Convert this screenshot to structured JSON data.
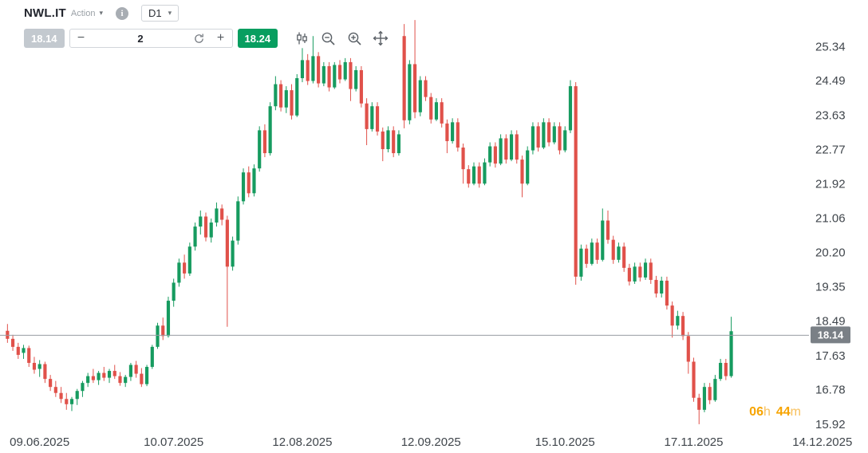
{
  "header": {
    "symbol": "NWL.IT",
    "instrument_type": "Action",
    "timeframe": "D1"
  },
  "trade": {
    "bid": "18.14",
    "quantity": "2",
    "ask": "18.24",
    "decrease_label": "−",
    "increase_label": "+"
  },
  "icons": {
    "caret_down": "▾",
    "info": "i",
    "toolbar_icons": [
      "candlestick-icon",
      "zoom-out-icon",
      "zoom-in-icon",
      "pan-icon"
    ]
  },
  "countdown": {
    "hours": "06",
    "hours_unit": "h",
    "minutes": "44",
    "minutes_unit": "m"
  },
  "chart_data": {
    "type": "candlestick",
    "symbol": "NWL.IT",
    "interval": "D1",
    "start_date": "09.06.2025",
    "last_price": 18.14,
    "last_price_label": "18.14",
    "price_min": 15.68,
    "price_max": 26.42,
    "total_slots": 150,
    "grid": false,
    "y_ticks": [
      "25.34",
      "24.49",
      "23.63",
      "22.77",
      "21.92",
      "21.06",
      "20.20",
      "19.35",
      "18.49",
      "17.63",
      "16.78",
      "15.92"
    ],
    "x_ticks": [
      {
        "label": "09.06.2025",
        "slot": 6
      },
      {
        "label": "10.07.2025",
        "slot": 31
      },
      {
        "label": "12.08.2025",
        "slot": 55
      },
      {
        "label": "12.09.2025",
        "slot": 79
      },
      {
        "label": "15.10.2025",
        "slot": 104
      },
      {
        "label": "17.11.2025",
        "slot": 128
      },
      {
        "label": "14.12.2025",
        "slot": 152
      }
    ],
    "colors": {
      "up": "#169b5f",
      "down": "#e0514a",
      "price_line": "#979da3",
      "price_badge_bg": "#7a8086",
      "axis_text": "#40464c"
    },
    "candles": [
      [
        18.25,
        18.42,
        17.95,
        18.05
      ],
      [
        18.05,
        18.15,
        17.75,
        17.85
      ],
      [
        17.85,
        17.95,
        17.55,
        17.65
      ],
      [
        17.7,
        17.9,
        17.55,
        17.82
      ],
      [
        17.82,
        17.88,
        17.35,
        17.45
      ],
      [
        17.45,
        17.6,
        17.18,
        17.28
      ],
      [
        17.3,
        17.52,
        17.1,
        17.42
      ],
      [
        17.42,
        17.48,
        16.95,
        17.05
      ],
      [
        17.05,
        17.15,
        16.75,
        16.85
      ],
      [
        16.85,
        17.0,
        16.6,
        16.7
      ],
      [
        16.7,
        16.85,
        16.45,
        16.55
      ],
      [
        16.55,
        16.7,
        16.28,
        16.42
      ],
      [
        16.42,
        16.6,
        16.25,
        16.55
      ],
      [
        16.55,
        16.8,
        16.4,
        16.75
      ],
      [
        16.75,
        17.0,
        16.6,
        16.95
      ],
      [
        16.95,
        17.2,
        16.85,
        17.12
      ],
      [
        17.12,
        17.3,
        16.95,
        17.02
      ],
      [
        17.02,
        17.25,
        16.9,
        17.2
      ],
      [
        17.2,
        17.35,
        17.0,
        17.08
      ],
      [
        17.08,
        17.3,
        16.95,
        17.25
      ],
      [
        17.25,
        17.4,
        17.05,
        17.12
      ],
      [
        17.12,
        17.22,
        16.88,
        16.95
      ],
      [
        16.95,
        17.15,
        16.85,
        17.1
      ],
      [
        17.1,
        17.45,
        17.0,
        17.4
      ],
      [
        17.4,
        17.5,
        17.08,
        17.18
      ],
      [
        17.18,
        17.32,
        16.85,
        16.92
      ],
      [
        16.92,
        17.4,
        16.87,
        17.35
      ],
      [
        17.35,
        17.9,
        17.3,
        17.85
      ],
      [
        17.85,
        18.45,
        17.8,
        18.38
      ],
      [
        18.38,
        18.58,
        18.02,
        18.12
      ],
      [
        18.12,
        19.1,
        18.08,
        19.0
      ],
      [
        19.0,
        19.55,
        18.85,
        19.45
      ],
      [
        19.45,
        20.05,
        19.35,
        19.95
      ],
      [
        19.95,
        20.15,
        19.55,
        19.68
      ],
      [
        19.68,
        20.45,
        19.62,
        20.35
      ],
      [
        20.35,
        20.95,
        20.25,
        20.85
      ],
      [
        20.85,
        21.25,
        20.65,
        21.1
      ],
      [
        21.1,
        21.2,
        20.48,
        20.58
      ],
      [
        20.58,
        21.05,
        20.45,
        20.95
      ],
      [
        20.95,
        21.45,
        20.85,
        21.3
      ],
      [
        21.3,
        21.4,
        20.88,
        21.02
      ],
      [
        21.02,
        21.12,
        18.35,
        19.85
      ],
      [
        19.85,
        20.6,
        19.75,
        20.5
      ],
      [
        20.5,
        21.6,
        20.4,
        21.48
      ],
      [
        21.48,
        22.3,
        21.4,
        22.2
      ],
      [
        22.2,
        22.35,
        21.58,
        21.68
      ],
      [
        21.68,
        22.4,
        21.6,
        22.3
      ],
      [
        22.3,
        23.35,
        22.22,
        23.25
      ],
      [
        23.25,
        23.4,
        22.58,
        22.68
      ],
      [
        22.68,
        23.95,
        22.62,
        23.85
      ],
      [
        23.85,
        24.6,
        23.75,
        24.4
      ],
      [
        24.4,
        24.5,
        23.72,
        23.82
      ],
      [
        23.82,
        24.35,
        23.68,
        24.25
      ],
      [
        24.25,
        24.4,
        23.52,
        23.62
      ],
      [
        23.62,
        24.65,
        23.58,
        24.55
      ],
      [
        24.55,
        25.3,
        24.45,
        25.0
      ],
      [
        25.0,
        25.15,
        24.38,
        24.48
      ],
      [
        24.48,
        25.6,
        24.42,
        25.1
      ],
      [
        25.1,
        25.2,
        24.32,
        24.42
      ],
      [
        24.42,
        24.95,
        24.35,
        24.85
      ],
      [
        24.85,
        24.95,
        24.22,
        24.32
      ],
      [
        24.32,
        24.95,
        24.28,
        24.88
      ],
      [
        24.88,
        25.0,
        24.42,
        24.52
      ],
      [
        24.52,
        25.05,
        24.48,
        24.95
      ],
      [
        24.95,
        25.05,
        23.98,
        24.28
      ],
      [
        24.28,
        24.85,
        24.22,
        24.75
      ],
      [
        24.75,
        24.85,
        23.82,
        23.92
      ],
      [
        23.92,
        24.05,
        22.88,
        23.28
      ],
      [
        23.28,
        23.95,
        23.22,
        23.85
      ],
      [
        23.85,
        23.95,
        23.12,
        23.22
      ],
      [
        23.22,
        23.32,
        22.48,
        22.78
      ],
      [
        22.78,
        23.35,
        22.7,
        23.25
      ],
      [
        23.25,
        23.35,
        22.58,
        22.68
      ],
      [
        22.68,
        23.25,
        22.62,
        23.15
      ],
      [
        25.6,
        25.9,
        23.3,
        23.5
      ],
      [
        23.5,
        25.0,
        23.4,
        24.9
      ],
      [
        24.9,
        26.0,
        23.55,
        23.7
      ],
      [
        23.7,
        24.6,
        23.6,
        24.5
      ],
      [
        24.5,
        24.6,
        23.98,
        24.08
      ],
      [
        24.08,
        24.18,
        23.42,
        23.52
      ],
      [
        23.52,
        24.05,
        23.48,
        23.95
      ],
      [
        23.95,
        24.05,
        23.32,
        23.42
      ],
      [
        23.42,
        23.52,
        22.68,
        22.98
      ],
      [
        22.98,
        23.55,
        22.92,
        23.45
      ],
      [
        23.45,
        23.55,
        22.72,
        22.82
      ],
      [
        22.82,
        22.92,
        21.92,
        22.28
      ],
      [
        22.28,
        22.38,
        21.82,
        21.92
      ],
      [
        21.92,
        22.45,
        21.88,
        22.35
      ],
      [
        22.35,
        22.45,
        21.82,
        21.92
      ],
      [
        21.92,
        22.55,
        21.88,
        22.45
      ],
      [
        22.45,
        22.95,
        22.35,
        22.85
      ],
      [
        22.85,
        22.95,
        22.32,
        22.42
      ],
      [
        22.42,
        23.15,
        22.38,
        23.05
      ],
      [
        23.05,
        23.15,
        22.42,
        22.52
      ],
      [
        22.52,
        23.25,
        22.48,
        23.15
      ],
      [
        23.15,
        23.25,
        22.42,
        22.52
      ],
      [
        22.52,
        22.62,
        21.58,
        21.92
      ],
      [
        21.92,
        22.85,
        21.88,
        22.75
      ],
      [
        22.75,
        23.45,
        22.65,
        23.35
      ],
      [
        23.35,
        23.45,
        22.72,
        22.82
      ],
      [
        22.82,
        23.55,
        22.78,
        23.45
      ],
      [
        23.45,
        23.55,
        22.85,
        22.95
      ],
      [
        22.95,
        23.45,
        22.9,
        23.35
      ],
      [
        23.35,
        23.45,
        22.65,
        22.75
      ],
      [
        22.75,
        23.35,
        22.7,
        23.25
      ],
      [
        23.25,
        24.5,
        23.18,
        24.35
      ],
      [
        24.35,
        24.45,
        19.4,
        19.6
      ],
      [
        19.6,
        20.4,
        19.5,
        20.3
      ],
      [
        20.3,
        20.4,
        19.82,
        19.92
      ],
      [
        19.92,
        20.55,
        19.88,
        20.45
      ],
      [
        20.45,
        20.55,
        19.92,
        20.02
      ],
      [
        20.02,
        21.3,
        19.98,
        21.0
      ],
      [
        21.0,
        21.25,
        20.42,
        20.52
      ],
      [
        20.52,
        20.62,
        19.92,
        20.02
      ],
      [
        20.02,
        20.45,
        19.95,
        20.35
      ],
      [
        20.35,
        20.45,
        19.72,
        19.82
      ],
      [
        19.82,
        19.92,
        19.38,
        19.48
      ],
      [
        19.48,
        19.95,
        19.42,
        19.85
      ],
      [
        19.85,
        19.95,
        19.48,
        19.58
      ],
      [
        19.58,
        20.05,
        19.52,
        19.95
      ],
      [
        19.95,
        20.05,
        19.42,
        19.52
      ],
      [
        19.52,
        19.62,
        19.08,
        19.18
      ],
      [
        19.18,
        19.6,
        19.08,
        19.5
      ],
      [
        19.5,
        19.6,
        18.78,
        18.88
      ],
      [
        18.88,
        18.98,
        18.08,
        18.38
      ],
      [
        18.38,
        18.75,
        18.28,
        18.62
      ],
      [
        18.62,
        18.72,
        18.02,
        18.12
      ],
      [
        18.12,
        18.22,
        17.18,
        17.48
      ],
      [
        17.48,
        17.58,
        16.48,
        16.58
      ],
      [
        16.58,
        16.68,
        15.92,
        16.28
      ],
      [
        16.28,
        16.95,
        16.22,
        16.85
      ],
      [
        16.85,
        16.95,
        16.42,
        16.52
      ],
      [
        16.52,
        17.15,
        16.48,
        17.05
      ],
      [
        17.05,
        17.55,
        17.0,
        17.45
      ],
      [
        17.45,
        17.55,
        17.02,
        17.12
      ],
      [
        17.12,
        18.6,
        17.08,
        18.24
      ]
    ]
  }
}
